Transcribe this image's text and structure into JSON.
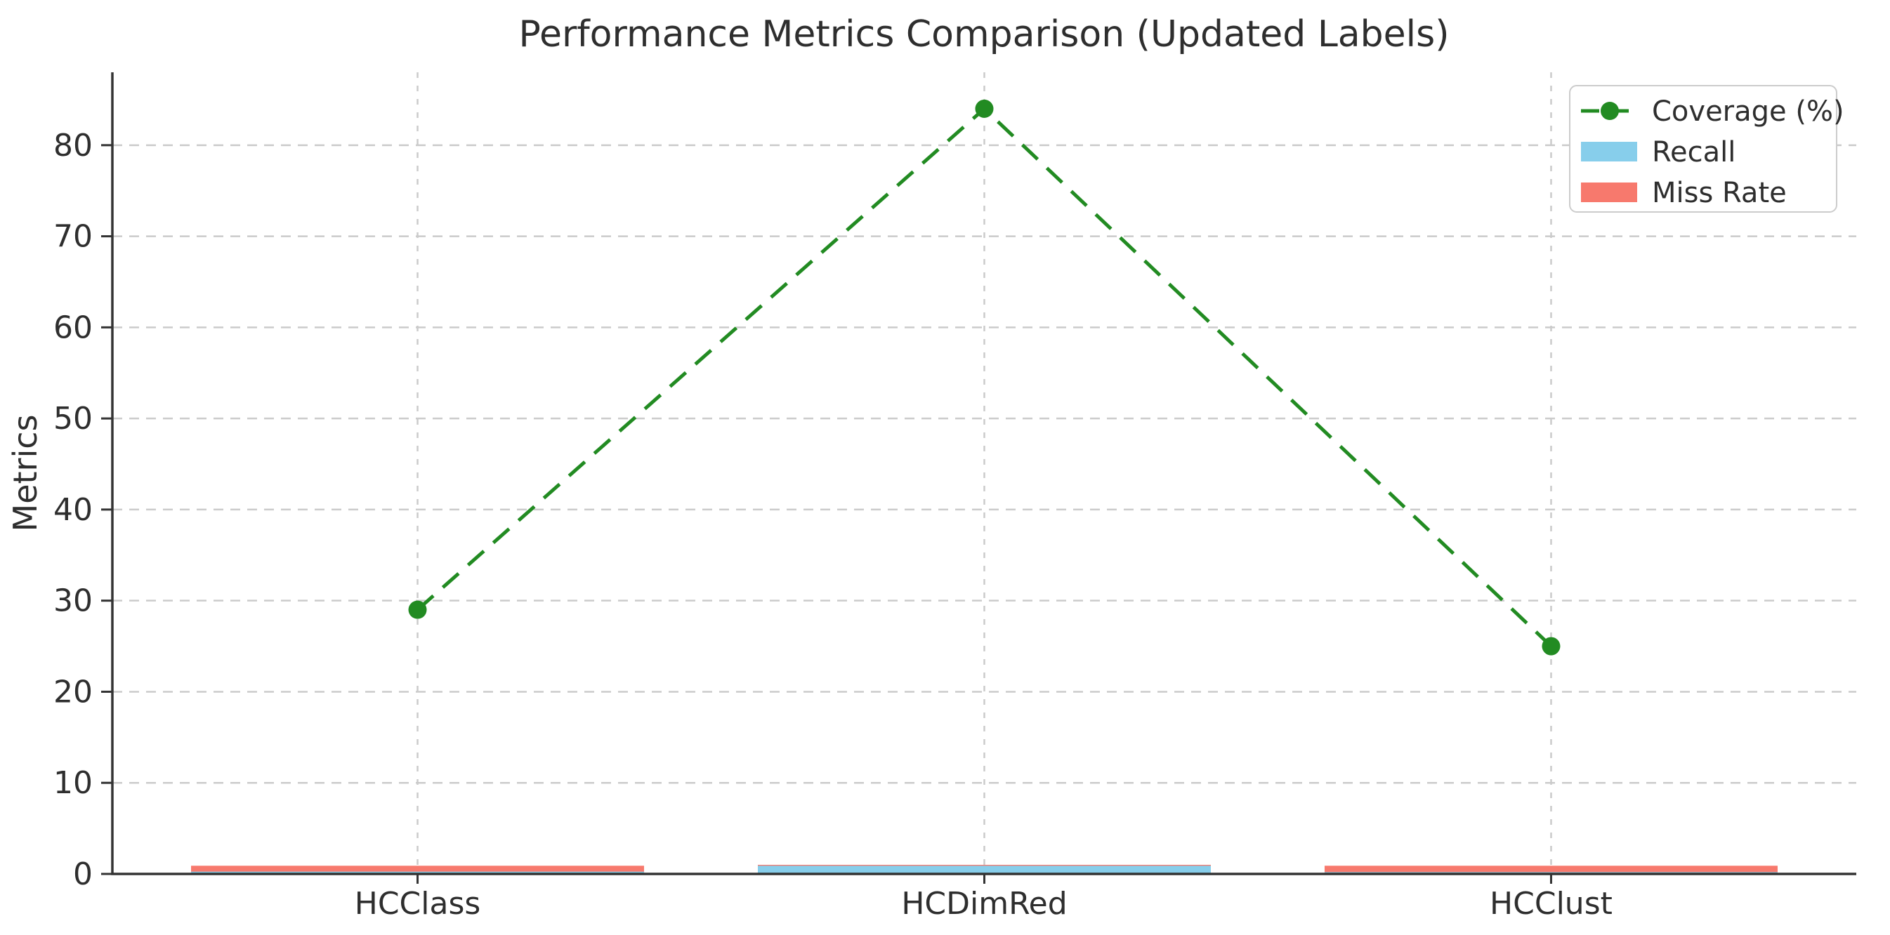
{
  "chart_data": {
    "type": "line+bar combo",
    "title": "Performance Metrics Comparison (Updated Labels)",
    "ylabel": "Metrics",
    "xlabel": "",
    "categories": [
      "HCClass",
      "HCDimRed",
      "HCClust"
    ],
    "yticks": [
      0,
      10,
      20,
      30,
      40,
      50,
      60,
      70,
      80
    ],
    "ylim": [
      0,
      88
    ],
    "grid": {
      "horizontal": true,
      "vertical": true,
      "style": "dashed"
    },
    "legend_position": "upper right",
    "series": [
      {
        "name": "Coverage (%)",
        "type": "line",
        "linestyle": "dashed",
        "marker": "circle",
        "color": "#228B22",
        "values": [
          29,
          84,
          25
        ]
      },
      {
        "name": "Recall",
        "type": "bar",
        "color": "#87CEEB",
        "values": [
          0.25,
          0.9,
          0.2
        ]
      },
      {
        "name": "Miss Rate",
        "type": "bar",
        "color": "#F7796D",
        "values": [
          0.9,
          1.0,
          0.9
        ]
      }
    ],
    "colors": {
      "axis": "#333333",
      "grid": "#cbcbcb",
      "text": "#2e2e2e",
      "background": "#ffffff",
      "legend_border": "#cccccc"
    }
  }
}
